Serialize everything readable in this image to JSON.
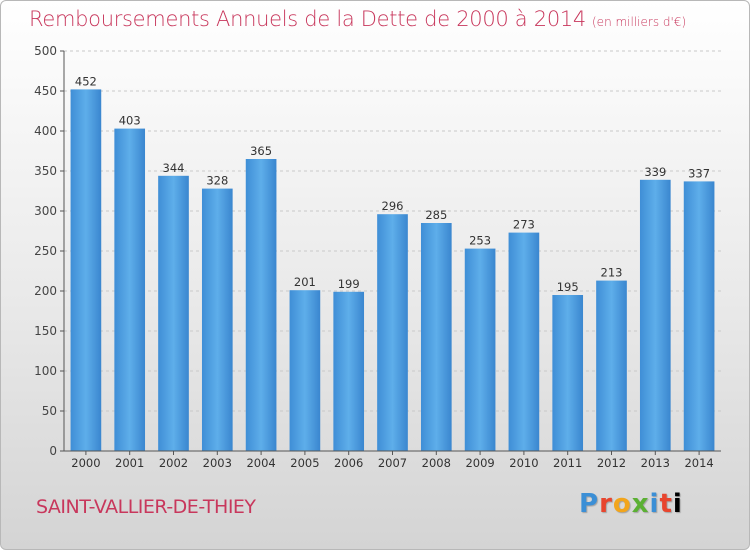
{
  "chart_data": {
    "type": "bar",
    "title": "Remboursements Annuels de la Dette de 2000 à 2014",
    "subtitle": "(en milliers d'€)",
    "categories": [
      "2000",
      "2001",
      "2002",
      "2003",
      "2004",
      "2005",
      "2006",
      "2007",
      "2008",
      "2009",
      "2010",
      "2011",
      "2012",
      "2013",
      "2014"
    ],
    "values": [
      452,
      403,
      344,
      328,
      365,
      201,
      199,
      296,
      285,
      253,
      273,
      195,
      213,
      339,
      337
    ],
    "ylim": [
      0,
      500
    ],
    "yticks": [
      0,
      50,
      100,
      150,
      200,
      250,
      300,
      350,
      400,
      450,
      500
    ],
    "grid": true,
    "bar_color": "#4a9de0"
  },
  "location": "SAINT-VALLIER-DE-THIEY",
  "logo": [
    "P",
    "r",
    "o",
    "x",
    "i",
    "t",
    "i"
  ]
}
